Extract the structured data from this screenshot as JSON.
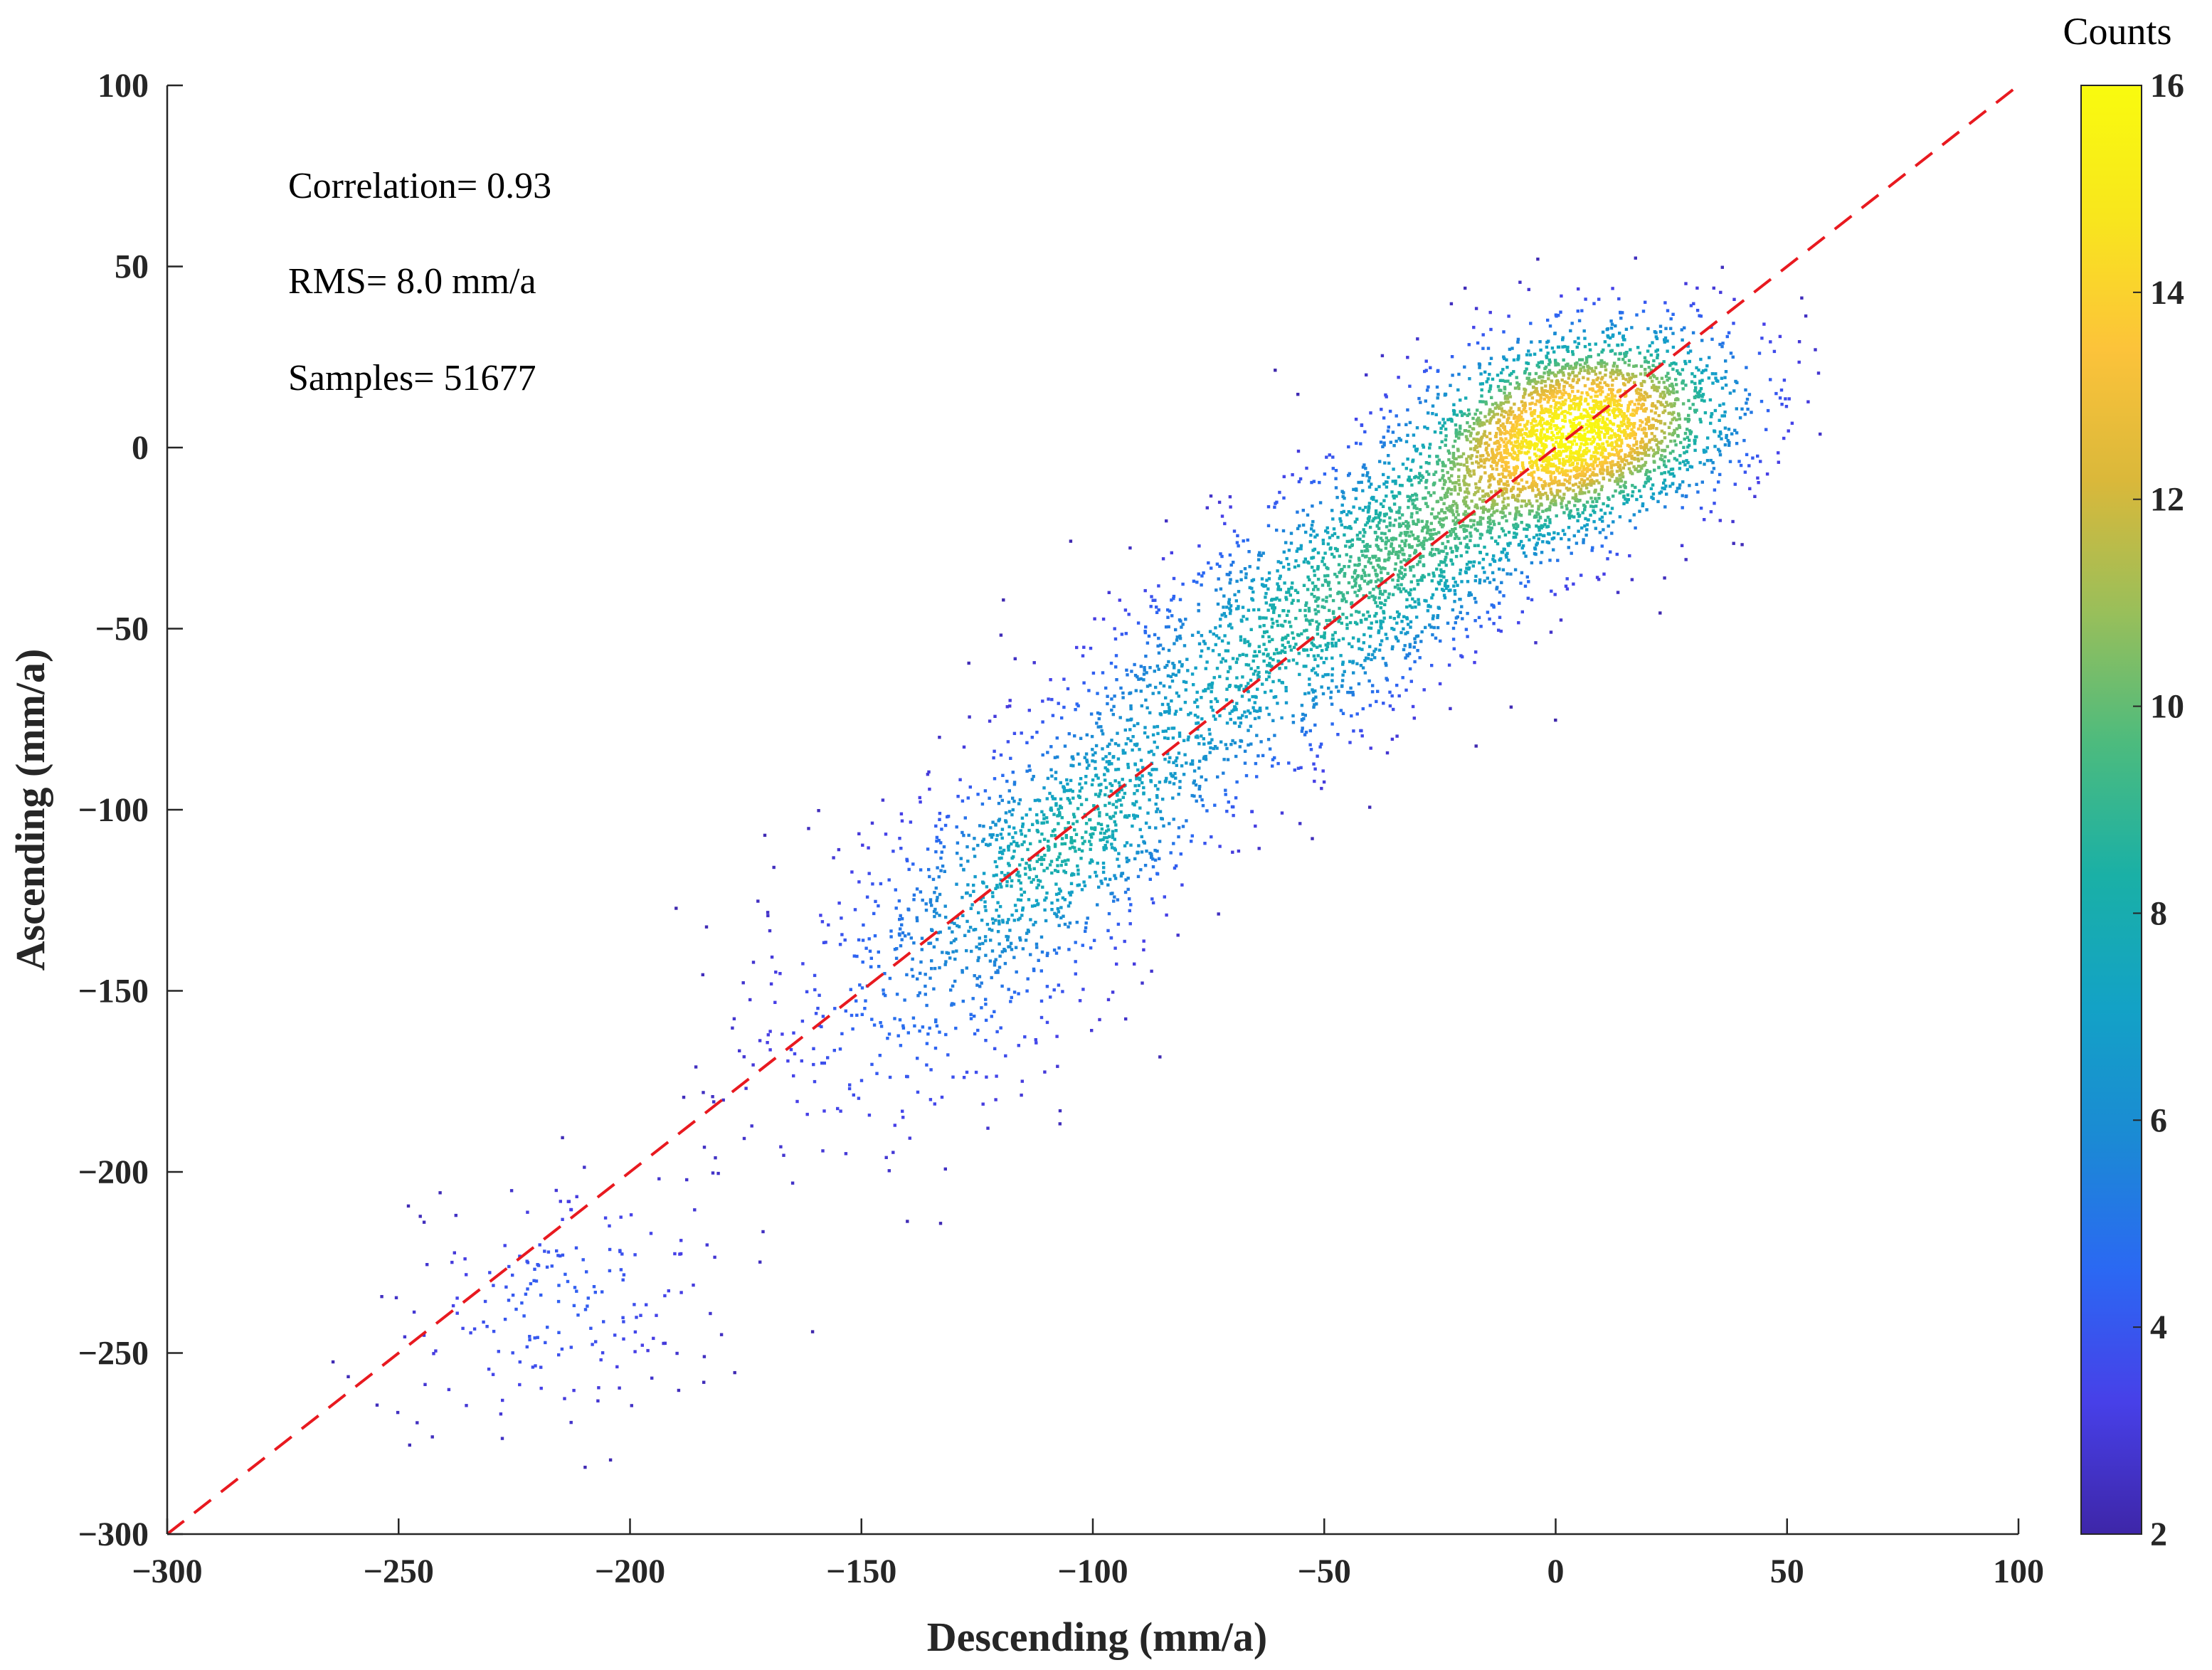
{
  "chart_data": {
    "type": "scatter",
    "title": "",
    "xlabel": "Descending (mm/a)",
    "ylabel": "Ascending (mm/a)",
    "xlim": [
      -300,
      100
    ],
    "ylim": [
      -300,
      100
    ],
    "xticks": [
      -300,
      -250,
      -200,
      -150,
      -100,
      -50,
      0,
      50,
      100
    ],
    "xtick_labels": [
      "−300",
      "−250",
      "−200",
      "−150",
      "−100",
      "−50",
      "0",
      "50",
      "100"
    ],
    "yticks": [
      -300,
      -250,
      -200,
      -150,
      -100,
      -50,
      0,
      50,
      100
    ],
    "ytick_labels": [
      "−300",
      "−250",
      "−200",
      "−150",
      "−100",
      "−50",
      "0",
      "50",
      "100"
    ],
    "grid": false,
    "annotations": [
      "Correlation= 0.93",
      "RMS= 8.0 mm/a",
      "Samples= 51677"
    ],
    "reference_line": {
      "x": [
        -300,
        100
      ],
      "y": [
        -300,
        100
      ],
      "color": "#e8191f",
      "style": "dashed"
    },
    "colorbar": {
      "title": "Counts",
      "range": [
        2,
        16
      ],
      "ticks": [
        2,
        4,
        6,
        8,
        10,
        12,
        14,
        16
      ],
      "tick_labels": [
        "2",
        "4",
        "6",
        "8",
        "10",
        "12",
        "14",
        "16"
      ],
      "colormap": [
        "#3e26a8",
        "#4740e8",
        "#2b68f3",
        "#1b8ad4",
        "#13a2c6",
        "#1ab0a6",
        "#4cbb7e",
        "#99bf5a",
        "#dab83a",
        "#fcc33a",
        "#f8e61d",
        "#f9fb0e"
      ]
    },
    "density_clusters": [
      {
        "x": 5,
        "y": 5,
        "sx": 17,
        "sy": 14,
        "rho": 0.25,
        "weight": 0.42
      },
      {
        "x": -30,
        "y": -25,
        "sx": 22,
        "sy": 20,
        "rho": 0.6,
        "weight": 0.2
      },
      {
        "x": -65,
        "y": -60,
        "sx": 24,
        "sy": 23,
        "rho": 0.6,
        "weight": 0.16
      },
      {
        "x": -105,
        "y": -108,
        "sx": 16,
        "sy": 17,
        "rho": 0.5,
        "weight": 0.1
      },
      {
        "x": -130,
        "y": -140,
        "sx": 22,
        "sy": 27,
        "rho": 0.45,
        "weight": 0.09
      },
      {
        "x": -215,
        "y": -235,
        "sx": 18,
        "sy": 18,
        "rho": 0.3,
        "weight": 0.03
      }
    ],
    "rendered_points": 6500
  }
}
